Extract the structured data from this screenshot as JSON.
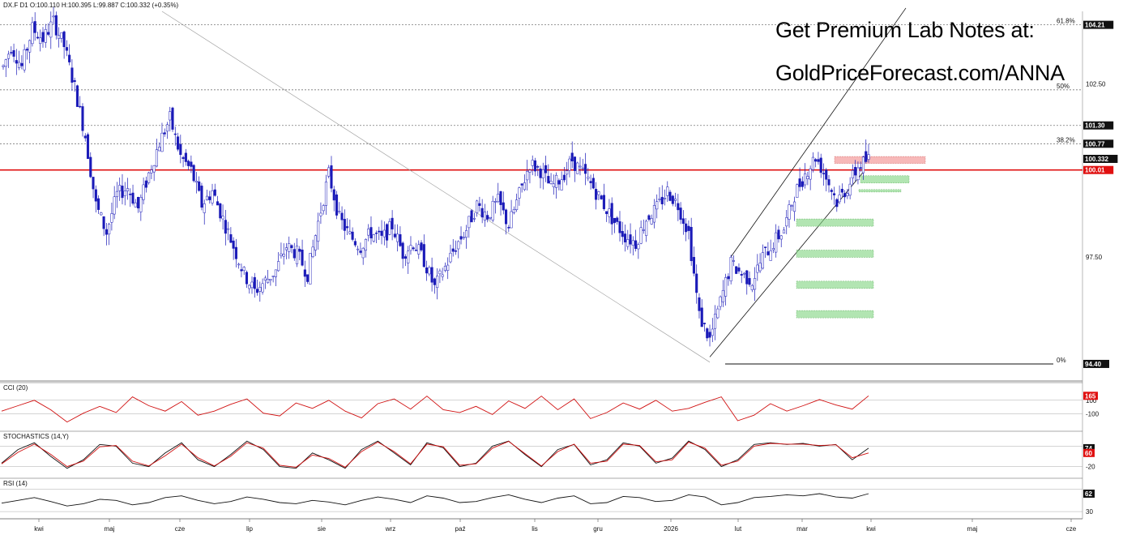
{
  "header": {
    "ohlc_line": "DX.F D1 O:100.110 H:100.395 L:99.887 C:100.332 (+0.35%)"
  },
  "promo": {
    "line1": "Get Premium Lab Notes at:",
    "line2": "GoldPriceForecast.com/ANNA"
  },
  "colors": {
    "bull": "#ffffff",
    "bear": "#1a1ab8",
    "resistance": "#e01010",
    "support_zone": "#7ed37e",
    "supply_zone": "#f08080",
    "cci_line": "#d01010",
    "stoch_k": "#111111",
    "stoch_d": "#d01010",
    "rsi_line": "#111111",
    "tag_dark": "#111111",
    "tag_red": "#e01010"
  },
  "chart_data": {
    "type": "candlestick",
    "symbol": "DX.F",
    "timeframe": "D1",
    "ohlc": {
      "open": 100.11,
      "high": 100.395,
      "low": 99.887,
      "close": 100.332,
      "change_pct": "+0.35%"
    },
    "price_range": [
      94.0,
      104.6
    ],
    "x_labels": [
      "kwi",
      "maj",
      "cze",
      "lip",
      "sie",
      "wrz",
      "paź",
      "lis",
      "gru",
      "2026",
      "lut",
      "mar",
      "kwi",
      "maj",
      "cze"
    ],
    "price_ticks": [
      "102.50",
      "97.50"
    ],
    "price_tags": [
      {
        "label": "104.21",
        "value": 104.21,
        "style": "dark"
      },
      {
        "label": "101.30",
        "value": 101.3,
        "style": "dark"
      },
      {
        "label": "100.77",
        "value": 100.77,
        "style": "dark"
      },
      {
        "label": "100.332",
        "value": 100.332,
        "style": "dark"
      },
      {
        "label": "100.01",
        "value": 100.01,
        "style": "red"
      },
      {
        "label": "94.40",
        "value": 94.4,
        "style": "dark"
      }
    ],
    "fibonacci": [
      {
        "label": "61.8%",
        "value": 104.21
      },
      {
        "label": "50%",
        "value": 102.33
      },
      {
        "label": "38.2%",
        "value": 100.77
      },
      {
        "label": "0%",
        "value": 94.4
      }
    ],
    "resistance_line": 100.01,
    "price_path": [
      [
        0,
        103.0
      ],
      [
        3,
        103.6
      ],
      [
        7,
        103.0
      ],
      [
        11,
        104.1
      ],
      [
        15,
        103.8
      ],
      [
        19,
        104.3
      ],
      [
        23,
        103.6
      ],
      [
        27,
        102.4
      ],
      [
        31,
        101.0
      ],
      [
        35,
        99.0
      ],
      [
        39,
        98.2
      ],
      [
        43,
        99.3
      ],
      [
        47,
        99.5
      ],
      [
        51,
        98.9
      ],
      [
        55,
        99.9
      ],
      [
        59,
        100.8
      ],
      [
        63,
        101.5
      ],
      [
        67,
        100.4
      ],
      [
        71,
        100.0
      ],
      [
        75,
        99.0
      ],
      [
        79,
        99.4
      ],
      [
        83,
        98.6
      ],
      [
        87,
        97.8
      ],
      [
        91,
        97.0
      ],
      [
        95,
        96.5
      ],
      [
        99,
        96.8
      ],
      [
        103,
        97.1
      ],
      [
        107,
        97.8
      ],
      [
        111,
        97.6
      ],
      [
        115,
        97.0
      ],
      [
        119,
        98.5
      ],
      [
        123,
        99.9
      ],
      [
        127,
        98.6
      ],
      [
        131,
        98.1
      ],
      [
        135,
        97.8
      ],
      [
        139,
        98.2
      ],
      [
        143,
        98.0
      ],
      [
        147,
        98.4
      ],
      [
        151,
        97.6
      ],
      [
        155,
        97.9
      ],
      [
        159,
        97.4
      ],
      [
        163,
        96.6
      ],
      [
        167,
        97.2
      ],
      [
        171,
        97.8
      ],
      [
        175,
        98.3
      ],
      [
        179,
        99.0
      ],
      [
        183,
        98.7
      ],
      [
        187,
        99.1
      ],
      [
        191,
        98.4
      ],
      [
        195,
        99.3
      ],
      [
        199,
        100.2
      ],
      [
        203,
        100.0
      ],
      [
        207,
        99.5
      ],
      [
        211,
        99.8
      ],
      [
        215,
        100.3
      ],
      [
        219,
        99.9
      ],
      [
        223,
        99.5
      ],
      [
        227,
        99.0
      ],
      [
        231,
        98.5
      ],
      [
        235,
        98.1
      ],
      [
        239,
        97.9
      ],
      [
        243,
        98.6
      ],
      [
        247,
        98.9
      ],
      [
        251,
        99.4
      ],
      [
        255,
        99.0
      ],
      [
        259,
        98.2
      ],
      [
        263,
        95.8
      ],
      [
        267,
        95.1
      ],
      [
        271,
        96.2
      ],
      [
        275,
        97.3
      ],
      [
        279,
        97.0
      ],
      [
        283,
        96.8
      ],
      [
        287,
        97.5
      ],
      [
        291,
        97.9
      ],
      [
        295,
        98.3
      ],
      [
        299,
        99.3
      ],
      [
        303,
        99.9
      ],
      [
        307,
        100.4
      ],
      [
        311,
        99.8
      ],
      [
        315,
        99.1
      ],
      [
        319,
        99.5
      ],
      [
        323,
        100.1
      ],
      [
        327,
        100.33
      ]
    ],
    "channel": {
      "lower_start": [
        267,
        94.6
      ],
      "lower_end": [
        325,
        99.95
      ],
      "upper_start": [
        275,
        97.5
      ],
      "upper_end": [
        340,
        103.2
      ]
    },
    "support_zones": [
      95.85,
      96.7,
      97.6,
      98.5,
      99.35,
      99.75
    ],
    "supply_zone": [
      100.2,
      100.4
    ],
    "indicators": [
      {
        "name": "CCI (20)",
        "label": "CCI (20)",
        "levels": [
          "100",
          "-100"
        ],
        "last_tag": "165",
        "values": [
          -60,
          20,
          100,
          -40,
          -220,
          -90,
          10,
          -80,
          150,
          20,
          -60,
          80,
          -120,
          -60,
          40,
          120,
          -90,
          -130,
          60,
          -20,
          100,
          -60,
          -160,
          50,
          120,
          -30,
          160,
          -40,
          -80,
          10,
          -110,
          90,
          -20,
          160,
          -40,
          120,
          -170,
          -80,
          60,
          -30,
          100,
          -60,
          -20,
          70,
          150,
          -200,
          -120,
          50,
          -60,
          20,
          110,
          30,
          -30,
          165
        ]
      },
      {
        "name": "STOCHASTICS (14,Y)",
        "label": "STOCHASTICS (14,Y)",
        "levels": [
          "-20"
        ],
        "last_tags": [
          "74",
          "60"
        ],
        "k": [
          30,
          70,
          90,
          50,
          15,
          40,
          85,
          80,
          30,
          20,
          60,
          90,
          40,
          20,
          55,
          95,
          70,
          20,
          15,
          60,
          40,
          15,
          70,
          95,
          60,
          25,
          90,
          75,
          20,
          30,
          80,
          95,
          55,
          20,
          70,
          85,
          25,
          40,
          90,
          80,
          30,
          45,
          95,
          70,
          20,
          40,
          85,
          90,
          85,
          88,
          80,
          85,
          40,
          74
        ],
        "d": [
          28,
          62,
          86,
          56,
          20,
          36,
          78,
          82,
          36,
          22,
          52,
          86,
          46,
          22,
          50,
          90,
          74,
          24,
          18,
          54,
          44,
          18,
          64,
          92,
          64,
          28,
          86,
          78,
          24,
          28,
          74,
          94,
          58,
          22,
          64,
          86,
          30,
          36,
          86,
          82,
          34,
          40,
          92,
          74,
          24,
          36,
          80,
          88,
          86,
          86,
          82,
          84,
          46,
          60
        ]
      },
      {
        "name": "RSI (14)",
        "label": "RSI (14)",
        "levels": [
          "30"
        ],
        "last_tag": "62",
        "values": [
          45,
          50,
          55,
          48,
          40,
          44,
          52,
          50,
          42,
          46,
          55,
          58,
          50,
          44,
          48,
          56,
          52,
          46,
          44,
          50,
          47,
          42,
          50,
          56,
          52,
          46,
          58,
          54,
          46,
          48,
          55,
          60,
          52,
          46,
          54,
          58,
          44,
          46,
          57,
          55,
          48,
          50,
          60,
          56,
          42,
          46,
          55,
          57,
          60,
          58,
          62,
          56,
          54,
          62
        ]
      }
    ]
  }
}
